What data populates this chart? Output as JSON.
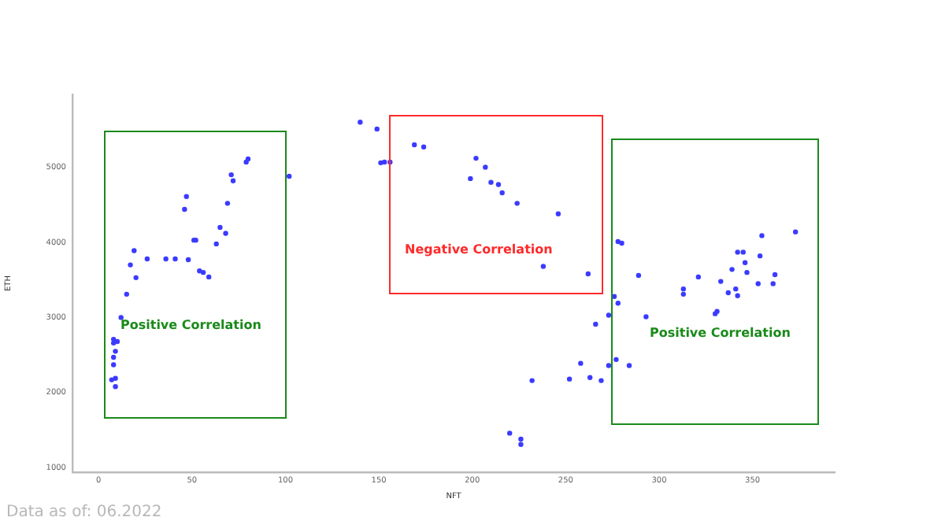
{
  "chart_data": {
    "type": "scatter",
    "xlabel": "NFT",
    "ylabel": "ETH",
    "color": "#3b3bff",
    "marker": "circle",
    "grid": false,
    "legend": false,
    "xlim": [
      -14,
      394
    ],
    "ylim": [
      940,
      5970
    ],
    "xticks": [
      0,
      50,
      100,
      150,
      200,
      250,
      300,
      350
    ],
    "yticks": [
      1000,
      2000,
      3000,
      4000,
      5000
    ],
    "annotations": [
      "Positive Correlation",
      "Negative Correlation",
      "Positive Correlation",
      "Data as of: 06.2022"
    ],
    "x": [
      7,
      9,
      9,
      8,
      8,
      10,
      8,
      8,
      9,
      12,
      15,
      17,
      19,
      20,
      26,
      36,
      41,
      48,
      46,
      47,
      51,
      52,
      54,
      56,
      59,
      63,
      65,
      68,
      69,
      71,
      72,
      79,
      80,
      102,
      140,
      149,
      151,
      153,
      156,
      169,
      174,
      202,
      207,
      199,
      210,
      214,
      216,
      224,
      246,
      238,
      262,
      278,
      280,
      276,
      278,
      273,
      266,
      258,
      273,
      277,
      284,
      252,
      263,
      269,
      232,
      220,
      226,
      226,
      289,
      293,
      313,
      313,
      321,
      330,
      331,
      333,
      337,
      339,
      341,
      342,
      342,
      345,
      346,
      347,
      353,
      354,
      355,
      361,
      362,
      373
    ],
    "values": [
      2170,
      2190,
      2080,
      2660,
      2710,
      2680,
      2470,
      2370,
      2550,
      3000,
      3310,
      3700,
      3890,
      3530,
      3780,
      3780,
      3780,
      3770,
      4440,
      4610,
      4030,
      4030,
      3620,
      3600,
      3540,
      3980,
      4200,
      4120,
      4520,
      4900,
      4820,
      5070,
      5110,
      4880,
      5600,
      5510,
      5060,
      5070,
      5070,
      5300,
      5270,
      5120,
      5000,
      4850,
      4800,
      4770,
      4660,
      4520,
      4380,
      3680,
      3580,
      4010,
      3990,
      3280,
      3190,
      3030,
      2910,
      2390,
      2360,
      2440,
      2360,
      2180,
      2200,
      2160,
      2160,
      1460,
      1380,
      1310,
      3560,
      3010,
      3380,
      3310,
      3540,
      3050,
      3080,
      3480,
      3330,
      3640,
      3380,
      3290,
      3870,
      3870,
      3730,
      3600,
      3450,
      3820,
      4090,
      3450,
      3570,
      4140
    ]
  }
}
